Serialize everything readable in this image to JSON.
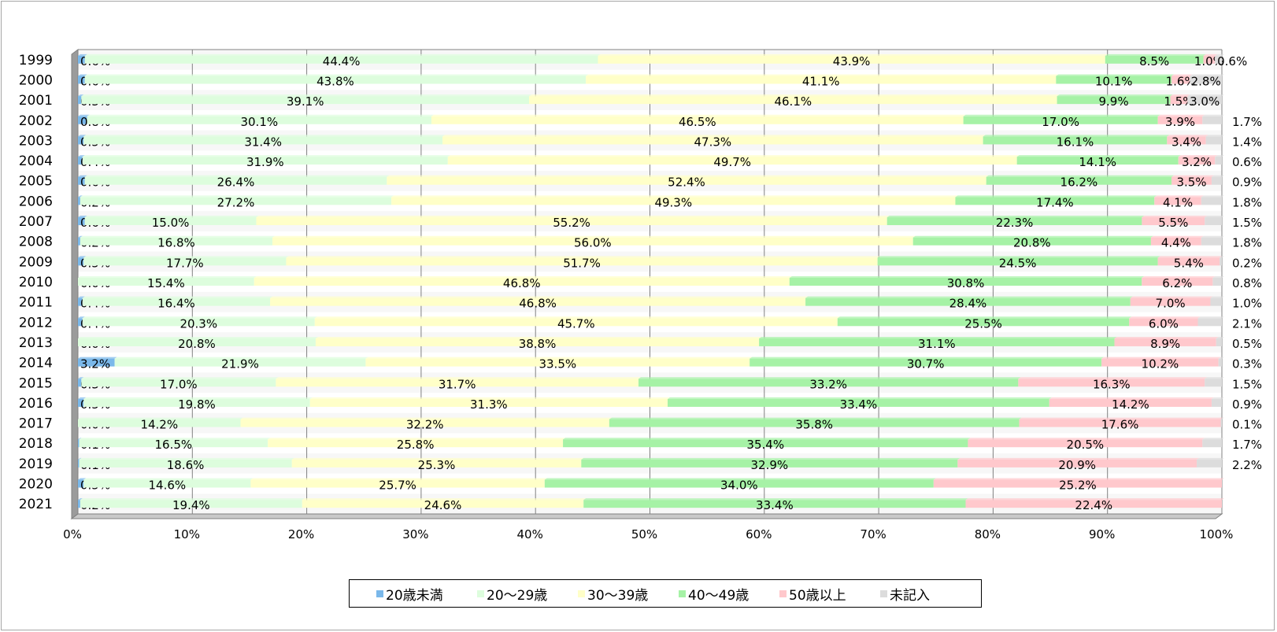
{
  "chart_data": {
    "type": "bar",
    "orientation": "horizontal",
    "stacked": true,
    "percent": true,
    "categories": [
      "1999",
      "2000",
      "2001",
      "2002",
      "2003",
      "2004",
      "2005",
      "2006",
      "2007",
      "2008",
      "2009",
      "2010",
      "2011",
      "2012",
      "2013",
      "2014",
      "2015",
      "2016",
      "2017",
      "2018",
      "2019",
      "2020",
      "2021"
    ],
    "series": [
      {
        "name": "20歳未満",
        "color": "#7ab8ea",
        "values": [
          0.6,
          0.6,
          0.3,
          0.8,
          0.5,
          0.4,
          0.6,
          0.2,
          0.6,
          0.2,
          0.5,
          0.0,
          0.4,
          0.4,
          0.0,
          3.2,
          0.3,
          0.5,
          0.0,
          0.1,
          0.1,
          0.5,
          0.2
        ],
        "labels": [
          "0.6%",
          "0.6%",
          "0.3%",
          "0.8%",
          "0.5%",
          "0.4%",
          "0.6%",
          "0.2%",
          "0.6%",
          "0.2%",
          "0.5%",
          "0.0%",
          "0.4%",
          "0.4%",
          "0.0%",
          "3.2%",
          "0.3%",
          "0.5%",
          "0.0%",
          "0.1%",
          "0.1%",
          "0.5%",
          "0.2%"
        ]
      },
      {
        "name": "20～29歳",
        "color": "#ddfddd",
        "values": [
          44.4,
          43.8,
          39.1,
          30.1,
          31.4,
          31.9,
          26.4,
          27.2,
          15.0,
          16.8,
          17.7,
          15.4,
          16.4,
          20.3,
          20.8,
          21.9,
          17.0,
          19.8,
          14.2,
          16.5,
          18.6,
          14.6,
          19.4
        ],
        "labels": [
          "44.4%",
          "43.8%",
          "39.1%",
          "30.1%",
          "31.4%",
          "31.9%",
          "26.4%",
          "27.2%",
          "15.0%",
          "16.8%",
          "17.7%",
          "15.4%",
          "16.4%",
          "20.3%",
          "20.8%",
          "21.9%",
          "17.0%",
          "19.8%",
          "14.2%",
          "16.5%",
          "18.6%",
          "14.6%",
          "19.4%"
        ]
      },
      {
        "name": "30～39歳",
        "color": "#ffffc8",
        "values": [
          43.9,
          41.1,
          46.1,
          46.5,
          47.3,
          49.7,
          52.4,
          49.3,
          55.2,
          56.0,
          51.7,
          46.8,
          46.8,
          45.7,
          38.8,
          33.5,
          31.7,
          31.3,
          32.2,
          25.8,
          25.3,
          25.7,
          24.6
        ],
        "labels": [
          "43.9%",
          "41.1%",
          "46.1%",
          "46.5%",
          "47.3%",
          "49.7%",
          "52.4%",
          "49.3%",
          "55.2%",
          "56.0%",
          "51.7%",
          "46.8%",
          "46.8%",
          "45.7%",
          "38.8%",
          "33.5%",
          "31.7%",
          "31.3%",
          "32.2%",
          "25.8%",
          "25.3%",
          "25.7%",
          "24.6%"
        ]
      },
      {
        "name": "40～49歳",
        "color": "#a6f2a6",
        "values": [
          8.5,
          10.1,
          9.9,
          17.0,
          16.1,
          14.1,
          16.2,
          17.4,
          22.3,
          20.8,
          24.5,
          30.8,
          28.4,
          25.5,
          31.1,
          30.7,
          33.2,
          33.4,
          35.8,
          35.4,
          32.9,
          34.0,
          33.4
        ],
        "labels": [
          "8.5%",
          "10.1%",
          "9.9%",
          "17.0%",
          "16.1%",
          "14.1%",
          "16.2%",
          "17.4%",
          "22.3%",
          "20.8%",
          "24.5%",
          "30.8%",
          "28.4%",
          "25.5%",
          "31.1%",
          "30.7%",
          "33.2%",
          "33.4%",
          "35.8%",
          "35.4%",
          "32.9%",
          "34.0%",
          "33.4%"
        ]
      },
      {
        "name": "50歳以上",
        "color": "#ffc8cc",
        "values": [
          1.0,
          1.6,
          1.5,
          3.9,
          3.4,
          3.2,
          3.5,
          4.1,
          5.5,
          4.4,
          5.4,
          6.2,
          7.0,
          6.0,
          8.9,
          10.2,
          16.3,
          14.2,
          17.6,
          20.5,
          20.9,
          25.2,
          22.4
        ],
        "labels": [
          "1.0%",
          "1.6%",
          "1.5%",
          "3.9%",
          "3.4%",
          "3.2%",
          "3.5%",
          "4.1%",
          "5.5%",
          "4.4%",
          "5.4%",
          "6.2%",
          "7.0%",
          "6.0%",
          "8.9%",
          "10.2%",
          "16.3%",
          "14.2%",
          "17.6%",
          "20.5%",
          "20.9%",
          "25.2%",
          "22.4%"
        ]
      },
      {
        "name": "未記入",
        "color": "#dcdcdc",
        "values": [
          0.6,
          2.8,
          3.0,
          1.7,
          1.4,
          0.6,
          0.9,
          1.8,
          1.5,
          1.8,
          0.2,
          0.8,
          1.0,
          2.1,
          0.5,
          0.3,
          1.5,
          0.9,
          0.1,
          1.7,
          2.2,
          0.0,
          0.0
        ],
        "labels": [
          "0.6%",
          "2.8%",
          "3.0%",
          "1.7%",
          "1.4%",
          "0.6%",
          "0.9%",
          "1.8%",
          "1.5%",
          "1.8%",
          "0.2%",
          "0.8%",
          "1.0%",
          "2.1%",
          "0.5%",
          "0.3%",
          "1.5%",
          "0.9%",
          "0.1%",
          "1.7%",
          "2.2%",
          "",
          ""
        ]
      }
    ],
    "xlim": [
      0,
      100
    ],
    "xticks": [
      "0%",
      "10%",
      "20%",
      "30%",
      "40%",
      "50%",
      "60%",
      "70%",
      "80%",
      "90%",
      "100%"
    ],
    "grid": true,
    "legend": "bottom"
  }
}
